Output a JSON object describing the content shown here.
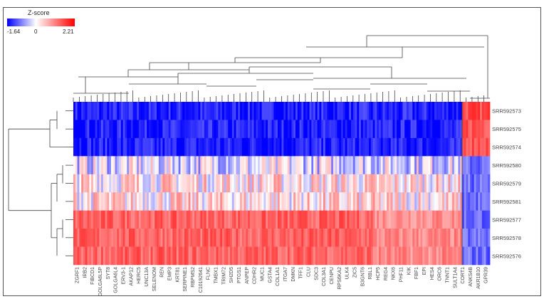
{
  "colorscale": {
    "title": "Z-score",
    "min_label": "-1.64",
    "mid_label": "0",
    "max_label": "2.21",
    "low_color": "#0000ff",
    "mid_color": "#ffffff",
    "high_color": "#ff0000"
  },
  "chart_data": {
    "type": "heatmap",
    "title": "",
    "value_range": [
      -1.64,
      2.21
    ],
    "rows": [
      "SRR592573",
      "SRR592575",
      "SRR592574",
      "SRR592580",
      "SRR592579",
      "SRR592581",
      "SRR592577",
      "SRR592578",
      "SRR592576"
    ],
    "column_labels": [
      "ZGRF1",
      "IRB2",
      "FIBCD1",
      "GOLGA6L5P",
      "SYT8",
      "GOLGA6L4",
      "ERV3-1",
      "AKAP12",
      "HERC5",
      "UNC13A",
      "SELENOM",
      "REN",
      "EMP3",
      "KRT81",
      "SERPINE1",
      "RBPMS2",
      "C10192641",
      "FLNC",
      "TMBX1",
      "TRIM72",
      "SH2D5",
      "PTGS1",
      "ANPEP",
      "CDHR2",
      "MUC1",
      "GSTA4",
      "COL1A1",
      "ITGA7",
      "DMKN",
      "TFF1",
      "CLU",
      "SDC3",
      "COL3A1",
      "CENPU",
      "RPS6KA2",
      "ULK4",
      "ZIC5",
      "B3GNT6",
      "RBL1",
      "HCP5",
      "REG4",
      "NKX6",
      "PHF11",
      "KIK",
      "FBF1",
      "EPI",
      "HES4",
      "ORC6",
      "TNNT1",
      "SULT1A4",
      "CORT1",
      "ANKS4B",
      "AKR1B10",
      "GPR39"
    ],
    "row_pattern": [
      {
        "row": "SRR592573",
        "main_block": "low",
        "right_block": "high"
      },
      {
        "row": "SRR592575",
        "main_block": "low",
        "right_block": "high"
      },
      {
        "row": "SRR592574",
        "main_block": "low",
        "right_block": "high"
      },
      {
        "row": "SRR592580",
        "main_block": "near zero",
        "right_block": "low"
      },
      {
        "row": "SRR592579",
        "main_block": "mixed",
        "right_block": "low"
      },
      {
        "row": "SRR592581",
        "main_block": "mixed",
        "right_block": "low"
      },
      {
        "row": "SRR592577",
        "main_block": "high",
        "right_block": "low"
      },
      {
        "row": "SRR592578",
        "main_block": "high",
        "right_block": "low"
      },
      {
        "row": "SRR592576",
        "main_block": "high",
        "right_block": "low"
      }
    ]
  }
}
